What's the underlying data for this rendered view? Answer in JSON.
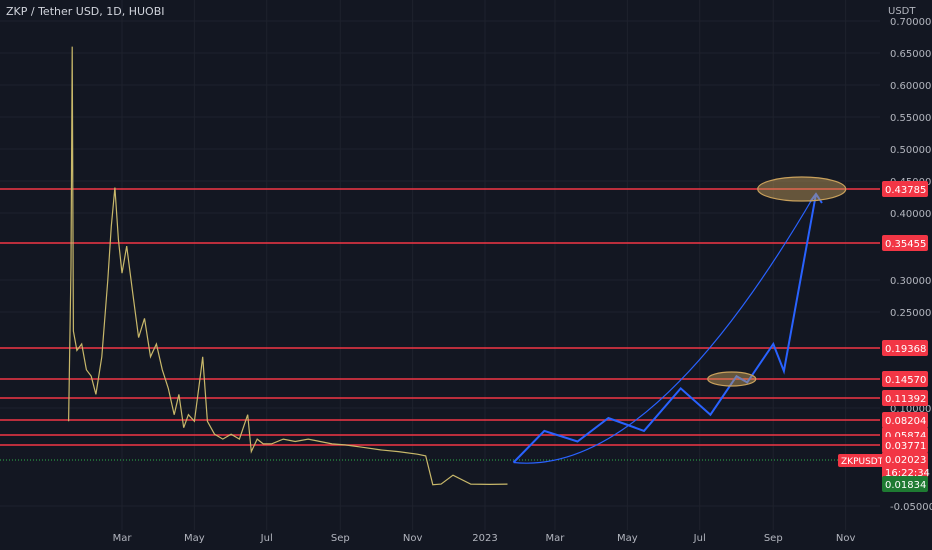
{
  "chart_data": {
    "type": "line",
    "title": "ZKP / Tether USD, 1D, HUOBI",
    "ylabel": "USDT",
    "ylim": [
      -0.05,
      0.7
    ],
    "x_ticks": [
      "Mar",
      "May",
      "Jul",
      "Sep",
      "Nov",
      "2023",
      "Mar",
      "May",
      "Jul",
      "Sep",
      "Nov"
    ],
    "y_ticks": [
      "0.70000",
      "0.65000",
      "0.60000",
      "0.55000",
      "0.50000",
      "0.45000",
      "0.40000",
      "0.30000",
      "0.25000",
      "0.10000",
      "-0.05000"
    ],
    "series": [
      {
        "name": "ZKPUSDT",
        "color": "#c8b86a",
        "points": [
          [
            "2022-01-15",
            0.08
          ],
          [
            "2022-01-17",
            0.32
          ],
          [
            "2022-01-18",
            0.66
          ],
          [
            "2022-01-19",
            0.22
          ],
          [
            "2022-01-22",
            0.19
          ],
          [
            "2022-01-26",
            0.2
          ],
          [
            "2022-01-30",
            0.16
          ],
          [
            "2022-02-03",
            0.15
          ],
          [
            "2022-02-07",
            0.12
          ],
          [
            "2022-02-12",
            0.18
          ],
          [
            "2022-02-17",
            0.3
          ],
          [
            "2022-02-20",
            0.38
          ],
          [
            "2022-02-23",
            0.44
          ],
          [
            "2022-02-26",
            0.36
          ],
          [
            "2022-03-01",
            0.31
          ],
          [
            "2022-03-05",
            0.35
          ],
          [
            "2022-03-10",
            0.28
          ],
          [
            "2022-03-15",
            0.21
          ],
          [
            "2022-03-20",
            0.24
          ],
          [
            "2022-03-25",
            0.18
          ],
          [
            "2022-03-30",
            0.2
          ],
          [
            "2022-04-04",
            0.16
          ],
          [
            "2022-04-09",
            0.13
          ],
          [
            "2022-04-14",
            0.09
          ],
          [
            "2022-04-18",
            0.12
          ],
          [
            "2022-04-22",
            0.07
          ],
          [
            "2022-04-26",
            0.09
          ],
          [
            "2022-05-01",
            0.08
          ],
          [
            "2022-05-06",
            0.15
          ],
          [
            "2022-05-08",
            0.18
          ],
          [
            "2022-05-12",
            0.08
          ],
          [
            "2022-05-18",
            0.06
          ],
          [
            "2022-05-25",
            0.05
          ],
          [
            "2022-06-01",
            0.06
          ],
          [
            "2022-06-08",
            0.05
          ],
          [
            "2022-06-15",
            0.09
          ],
          [
            "2022-06-18",
            0.03
          ],
          [
            "2022-06-23",
            0.05
          ],
          [
            "2022-06-28",
            0.04
          ],
          [
            "2022-07-05",
            0.04
          ],
          [
            "2022-07-15",
            0.05
          ],
          [
            "2022-07-25",
            0.045
          ],
          [
            "2022-08-05",
            0.05
          ],
          [
            "2022-08-15",
            0.045
          ],
          [
            "2022-08-25",
            0.04
          ],
          [
            "2022-09-05",
            0.038
          ],
          [
            "2022-09-20",
            0.035
          ],
          [
            "2022-10-05",
            0.032
          ],
          [
            "2022-10-20",
            0.03
          ],
          [
            "2022-11-05",
            0.027
          ],
          [
            "2022-11-12",
            0.025
          ],
          [
            "2022-11-18",
            0.016
          ],
          [
            "2022-11-25",
            0.018
          ],
          [
            "2022-12-05",
            0.019
          ],
          [
            "2022-12-20",
            0.018
          ],
          [
            "2023-01-05",
            0.017
          ],
          [
            "2023-01-20",
            0.018
          ]
        ]
      }
    ],
    "horizontal_levels": [
      {
        "label": "0.43785",
        "color": "#f23645"
      },
      {
        "label": "0.35455",
        "color": "#f23645"
      },
      {
        "label": "0.19368",
        "color": "#f23645"
      },
      {
        "label": "0.14570",
        "color": "#f23645"
      },
      {
        "label": "0.11392",
        "color": "#f23645"
      },
      {
        "label": "0.08204",
        "color": "#f23645"
      },
      {
        "label": "0.05874",
        "color": "#f23645"
      },
      {
        "label": "0.03771",
        "color": "#f23645"
      },
      {
        "label": "0.02023",
        "color": "#f23645"
      }
    ],
    "projection_path": {
      "color": "#2962ff",
      "points": [
        [
          "2023-01-25",
          0.02
        ],
        [
          "2023-02-20",
          0.065
        ],
        [
          "2023-03-20",
          0.045
        ],
        [
          "2023-04-15",
          0.085
        ],
        [
          "2023-05-15",
          0.065
        ],
        [
          "2023-06-15",
          0.13
        ],
        [
          "2023-07-10",
          0.09
        ],
        [
          "2023-08-01",
          0.15
        ],
        [
          "2023-08-10",
          0.14
        ],
        [
          "2023-09-01",
          0.2
        ],
        [
          "2023-09-10",
          0.158
        ],
        [
          "2023-10-07",
          0.43
        ]
      ]
    },
    "target_ellipses": [
      {
        "center": [
          "2023-09-25",
          0.43785
        ],
        "color": "#c9a15c"
      },
      {
        "center": [
          "2023-07-28",
          0.1457
        ],
        "color": "#c9a15c"
      }
    ],
    "price_labels": {
      "symbol": "ZKPUSDT",
      "current": "0.02023",
      "countdown": "16:22:34",
      "low": "0.01834"
    }
  },
  "colors": {
    "background": "#131722",
    "grid": "#1e222d",
    "axis_text": "#b2b5be",
    "level": "#f23645",
    "price_line": "#2db34a"
  }
}
